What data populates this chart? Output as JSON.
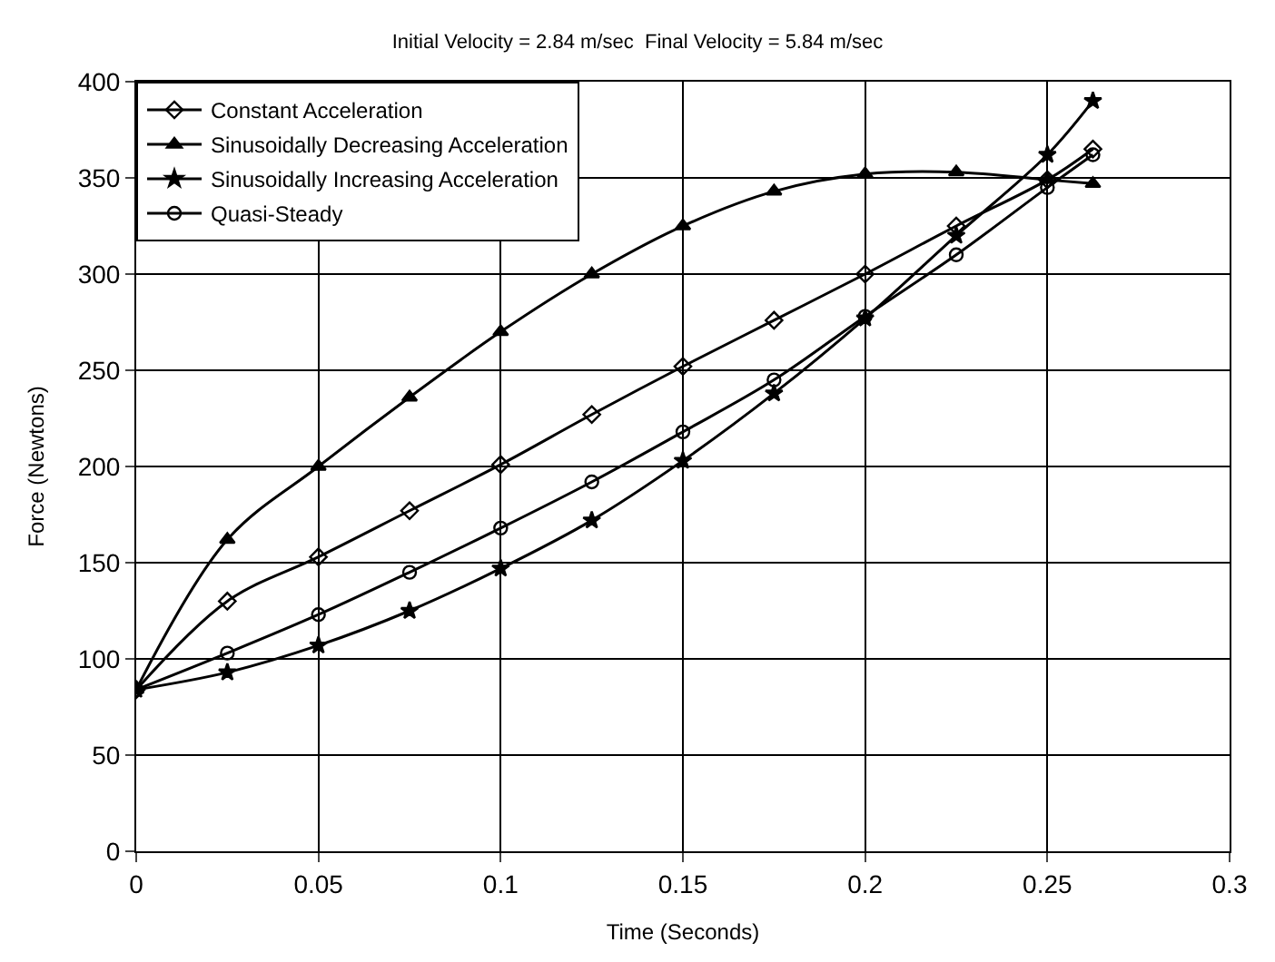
{
  "chart_data": {
    "type": "line",
    "title": "Initial Velocity = 2.84 m/sec  Final Velocity = 5.84 m/sec",
    "xlabel": "Time (Seconds)",
    "ylabel": "Force (Newtons)",
    "x": [
      0,
      0.025,
      0.05,
      0.075,
      0.1,
      0.125,
      0.15,
      0.175,
      0.2,
      0.225,
      0.25,
      0.2625
    ],
    "series": [
      {
        "name": "Constant Acceleration",
        "color": "#000000",
        "marker": "diamond",
        "values": [
          84,
          130,
          153,
          177,
          201,
          227,
          252,
          276,
          300,
          325,
          349,
          365
        ]
      },
      {
        "name": "Sinusoidally Decreasing Acceleration",
        "color": "#000000",
        "marker": "triangle",
        "values": [
          84,
          162,
          200,
          236,
          270,
          300,
          325,
          343,
          352,
          353,
          349,
          347
        ]
      },
      {
        "name": "Sinusoidally Increasing Acceleration",
        "color": "#000000",
        "marker": "star",
        "values": [
          84,
          93,
          107,
          125,
          147,
          172,
          203,
          238,
          277,
          320,
          362,
          390
        ]
      },
      {
        "name": "Quasi-Steady",
        "color": "#000000",
        "marker": "circle",
        "values": [
          84,
          103,
          123,
          145,
          168,
          192,
          218,
          245,
          278,
          310,
          345,
          362
        ]
      }
    ],
    "xlim": [
      0,
      0.3
    ],
    "xticks": [
      0,
      0.05,
      0.1,
      0.15,
      0.2,
      0.25,
      0.3
    ],
    "ylim": [
      0,
      400
    ],
    "yticks": [
      0,
      50,
      100,
      150,
      200,
      250,
      300,
      350,
      400
    ],
    "grid": true,
    "legend": "top left",
    "line_style": "solid"
  }
}
